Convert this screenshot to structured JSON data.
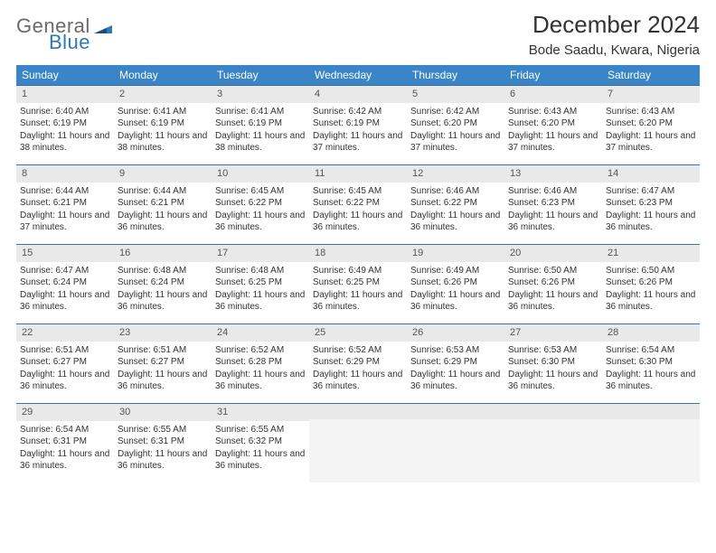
{
  "brand": {
    "part1": "General",
    "part2": "Blue"
  },
  "title": "December 2024",
  "location": "Bode Saadu, Kwara, Nigeria",
  "header_color": "#3a85c7",
  "border_color": "#3a6fa0",
  "daynum_bg": "#e9e9e9",
  "days_of_week": [
    "Sunday",
    "Monday",
    "Tuesday",
    "Wednesday",
    "Thursday",
    "Friday",
    "Saturday"
  ],
  "cells": [
    {
      "n": "1",
      "sr": "6:40 AM",
      "ss": "6:19 PM",
      "dl": "11 hours and 38 minutes."
    },
    {
      "n": "2",
      "sr": "6:41 AM",
      "ss": "6:19 PM",
      "dl": "11 hours and 38 minutes."
    },
    {
      "n": "3",
      "sr": "6:41 AM",
      "ss": "6:19 PM",
      "dl": "11 hours and 38 minutes."
    },
    {
      "n": "4",
      "sr": "6:42 AM",
      "ss": "6:19 PM",
      "dl": "11 hours and 37 minutes."
    },
    {
      "n": "5",
      "sr": "6:42 AM",
      "ss": "6:20 PM",
      "dl": "11 hours and 37 minutes."
    },
    {
      "n": "6",
      "sr": "6:43 AM",
      "ss": "6:20 PM",
      "dl": "11 hours and 37 minutes."
    },
    {
      "n": "7",
      "sr": "6:43 AM",
      "ss": "6:20 PM",
      "dl": "11 hours and 37 minutes."
    },
    {
      "n": "8",
      "sr": "6:44 AM",
      "ss": "6:21 PM",
      "dl": "11 hours and 37 minutes."
    },
    {
      "n": "9",
      "sr": "6:44 AM",
      "ss": "6:21 PM",
      "dl": "11 hours and 36 minutes."
    },
    {
      "n": "10",
      "sr": "6:45 AM",
      "ss": "6:22 PM",
      "dl": "11 hours and 36 minutes."
    },
    {
      "n": "11",
      "sr": "6:45 AM",
      "ss": "6:22 PM",
      "dl": "11 hours and 36 minutes."
    },
    {
      "n": "12",
      "sr": "6:46 AM",
      "ss": "6:22 PM",
      "dl": "11 hours and 36 minutes."
    },
    {
      "n": "13",
      "sr": "6:46 AM",
      "ss": "6:23 PM",
      "dl": "11 hours and 36 minutes."
    },
    {
      "n": "14",
      "sr": "6:47 AM",
      "ss": "6:23 PM",
      "dl": "11 hours and 36 minutes."
    },
    {
      "n": "15",
      "sr": "6:47 AM",
      "ss": "6:24 PM",
      "dl": "11 hours and 36 minutes."
    },
    {
      "n": "16",
      "sr": "6:48 AM",
      "ss": "6:24 PM",
      "dl": "11 hours and 36 minutes."
    },
    {
      "n": "17",
      "sr": "6:48 AM",
      "ss": "6:25 PM",
      "dl": "11 hours and 36 minutes."
    },
    {
      "n": "18",
      "sr": "6:49 AM",
      "ss": "6:25 PM",
      "dl": "11 hours and 36 minutes."
    },
    {
      "n": "19",
      "sr": "6:49 AM",
      "ss": "6:26 PM",
      "dl": "11 hours and 36 minutes."
    },
    {
      "n": "20",
      "sr": "6:50 AM",
      "ss": "6:26 PM",
      "dl": "11 hours and 36 minutes."
    },
    {
      "n": "21",
      "sr": "6:50 AM",
      "ss": "6:26 PM",
      "dl": "11 hours and 36 minutes."
    },
    {
      "n": "22",
      "sr": "6:51 AM",
      "ss": "6:27 PM",
      "dl": "11 hours and 36 minutes."
    },
    {
      "n": "23",
      "sr": "6:51 AM",
      "ss": "6:27 PM",
      "dl": "11 hours and 36 minutes."
    },
    {
      "n": "24",
      "sr": "6:52 AM",
      "ss": "6:28 PM",
      "dl": "11 hours and 36 minutes."
    },
    {
      "n": "25",
      "sr": "6:52 AM",
      "ss": "6:29 PM",
      "dl": "11 hours and 36 minutes."
    },
    {
      "n": "26",
      "sr": "6:53 AM",
      "ss": "6:29 PM",
      "dl": "11 hours and 36 minutes."
    },
    {
      "n": "27",
      "sr": "6:53 AM",
      "ss": "6:30 PM",
      "dl": "11 hours and 36 minutes."
    },
    {
      "n": "28",
      "sr": "6:54 AM",
      "ss": "6:30 PM",
      "dl": "11 hours and 36 minutes."
    },
    {
      "n": "29",
      "sr": "6:54 AM",
      "ss": "6:31 PM",
      "dl": "11 hours and 36 minutes."
    },
    {
      "n": "30",
      "sr": "6:55 AM",
      "ss": "6:31 PM",
      "dl": "11 hours and 36 minutes."
    },
    {
      "n": "31",
      "sr": "6:55 AM",
      "ss": "6:32 PM",
      "dl": "11 hours and 36 minutes."
    }
  ],
  "trailing_empty": 4,
  "labels": {
    "sunrise": "Sunrise:",
    "sunset": "Sunset:",
    "daylight": "Daylight:"
  }
}
